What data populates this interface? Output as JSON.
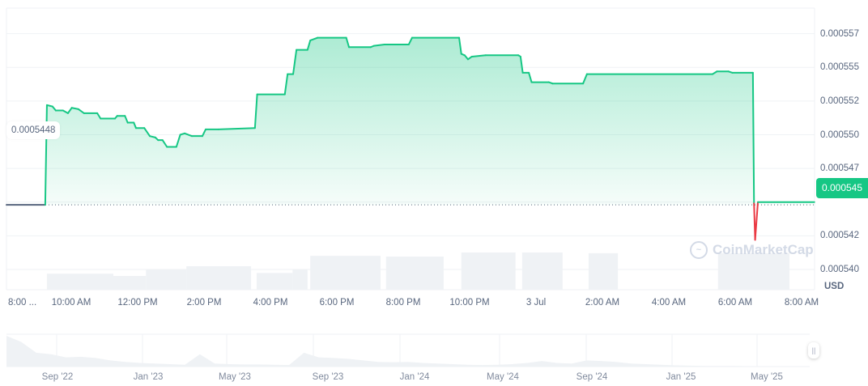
{
  "chart_data": {
    "type": "area",
    "currency_label": "USD",
    "open_price_label": "0.0005448",
    "current_price_label": "0.000545",
    "baseline_price": 0.0005448,
    "ylim": [
      0.0005385,
      0.0005594
    ],
    "y_ticks": [
      {
        "value": 0.0005575,
        "label": "0.000557"
      },
      {
        "value": 0.000555,
        "label": "0.000555"
      },
      {
        "value": 0.0005525,
        "label": "0.000552"
      },
      {
        "value": 0.00055,
        "label": "0.000550"
      },
      {
        "value": 0.0005475,
        "label": "0.000547"
      },
      {
        "value": 0.000545,
        "label": "0.000545"
      },
      {
        "value": 0.0005425,
        "label": "0.000542"
      },
      {
        "value": 0.00054,
        "label": "0.000540"
      }
    ],
    "x_ticks": [
      {
        "time": "2 Jul 08:00",
        "label": "8:00 ..."
      },
      {
        "time": "2 Jul 10:00",
        "label": "10:00 AM"
      },
      {
        "time": "2 Jul 12:00",
        "label": "12:00 PM"
      },
      {
        "time": "2 Jul 14:00",
        "label": "2:00 PM"
      },
      {
        "time": "2 Jul 16:00",
        "label": "4:00 PM"
      },
      {
        "time": "2 Jul 18:00",
        "label": "6:00 PM"
      },
      {
        "time": "2 Jul 20:00",
        "label": "8:00 PM"
      },
      {
        "time": "2 Jul 22:00",
        "label": "10:00 PM"
      },
      {
        "time": "3 Jul 00:00",
        "label": "3 Jul"
      },
      {
        "time": "3 Jul 02:00",
        "label": "2:00 AM"
      },
      {
        "time": "3 Jul 04:00",
        "label": "4:00 AM"
      },
      {
        "time": "3 Jul 06:00",
        "label": "6:00 AM"
      },
      {
        "time": "3 Jul 08:00",
        "label": "8:00 AM"
      }
    ],
    "colors": {
      "up": "#16c784",
      "down": "#ea3943",
      "volume": "#eff2f5",
      "grid": "#eff2f5"
    },
    "series": [
      {
        "points": [
          [
            "2 Jul 08:03",
            0.0005448
          ],
          [
            "2 Jul 09:13",
            0.0005448
          ],
          [
            "2 Jul 09:16",
            0.0005522
          ],
          [
            "2 Jul 09:26",
            0.0005521
          ],
          [
            "2 Jul 09:32",
            0.0005518
          ],
          [
            "2 Jul 09:45",
            0.0005518
          ],
          [
            "2 Jul 09:54",
            0.0005516
          ],
          [
            "2 Jul 10:01",
            0.000552
          ],
          [
            "2 Jul 10:13",
            0.0005519
          ],
          [
            "2 Jul 10:23",
            0.0005516
          ],
          [
            "2 Jul 10:47",
            0.0005516
          ],
          [
            "2 Jul 10:53",
            0.0005512
          ],
          [
            "2 Jul 11:19",
            0.0005512
          ],
          [
            "2 Jul 11:23",
            0.0005514
          ],
          [
            "2 Jul 11:37",
            0.0005514
          ],
          [
            "2 Jul 11:42",
            0.0005509
          ],
          [
            "2 Jul 11:53",
            0.0005509
          ],
          [
            "2 Jul 11:57",
            0.0005505
          ],
          [
            "2 Jul 12:12",
            0.0005505
          ],
          [
            "2 Jul 12:22",
            0.0005499
          ],
          [
            "2 Jul 12:32",
            0.0005498
          ],
          [
            "2 Jul 12:37",
            0.0005496
          ],
          [
            "2 Jul 12:45",
            0.0005496
          ],
          [
            "2 Jul 12:53",
            0.0005491
          ],
          [
            "2 Jul 13:10",
            0.0005491
          ],
          [
            "2 Jul 13:17",
            0.00055
          ],
          [
            "2 Jul 13:25",
            0.0005501
          ],
          [
            "2 Jul 13:38",
            0.0005499
          ],
          [
            "2 Jul 13:57",
            0.0005499
          ],
          [
            "2 Jul 14:03",
            0.0005504
          ],
          [
            "2 Jul 14:26",
            0.0005504
          ],
          [
            "2 Jul 15:32",
            0.0005505
          ],
          [
            "2 Jul 15:36",
            0.000553
          ],
          [
            "2 Jul 16:26",
            0.000553
          ],
          [
            "2 Jul 16:31",
            0.0005545
          ],
          [
            "2 Jul 16:41",
            0.0005545
          ],
          [
            "2 Jul 16:47",
            0.0005563
          ],
          [
            "2 Jul 17:07",
            0.0005563
          ],
          [
            "2 Jul 17:12",
            0.000557
          ],
          [
            "2 Jul 17:25",
            0.0005572
          ],
          [
            "2 Jul 18:17",
            0.0005572
          ],
          [
            "2 Jul 18:22",
            0.0005565
          ],
          [
            "2 Jul 19:01",
            0.0005565
          ],
          [
            "2 Jul 19:07",
            0.0005566
          ],
          [
            "2 Jul 19:26",
            0.0005567
          ],
          [
            "2 Jul 20:10",
            0.0005567
          ],
          [
            "2 Jul 20:16",
            0.0005572
          ],
          [
            "2 Jul 21:41",
            0.0005572
          ],
          [
            "2 Jul 21:45",
            0.000556
          ],
          [
            "2 Jul 21:51",
            0.0005559
          ],
          [
            "2 Jul 21:57",
            0.0005556
          ],
          [
            "2 Jul 22:04",
            0.0005558
          ],
          [
            "2 Jul 22:29",
            0.0005559
          ],
          [
            "2 Jul 23:28",
            0.0005559
          ],
          [
            "2 Jul 23:32",
            0.0005558
          ],
          [
            "2 Jul 23:36",
            0.0005546
          ],
          [
            "2 Jul 23:47",
            0.0005546
          ],
          [
            "2 Jul 23:52",
            0.0005539
          ],
          [
            "3 Jul 00:23",
            0.0005539
          ],
          [
            "3 Jul 00:30",
            0.0005538
          ],
          [
            "3 Jul 01:25",
            0.0005538
          ],
          [
            "3 Jul 01:32",
            0.0005545
          ],
          [
            "3 Jul 05:19",
            0.0005545
          ],
          [
            "3 Jul 05:27",
            0.0005547
          ],
          [
            "3 Jul 05:48",
            0.0005547
          ],
          [
            "3 Jul 05:55",
            0.0005546
          ],
          [
            "3 Jul 06:32",
            0.0005546
          ],
          [
            "3 Jul 06:34",
            0.0005449
          ],
          [
            "3 Jul 06:36",
            0.0005422
          ],
          [
            "3 Jul 06:41",
            0.000545
          ],
          [
            "3 Jul 08:23",
            0.000545
          ]
        ]
      }
    ],
    "volume_relative": [
      [
        "2 Jul 09:16",
        "2 Jul 11:16",
        0.43
      ],
      [
        "2 Jul 11:16",
        "2 Jul 12:15",
        0.37
      ],
      [
        "2 Jul 12:15",
        "2 Jul 13:28",
        0.54
      ],
      [
        "2 Jul 13:28",
        "2 Jul 15:25",
        0.63
      ],
      [
        "2 Jul 15:35",
        "2 Jul 16:40",
        0.45
      ],
      [
        "2 Jul 16:40",
        "2 Jul 17:07",
        0.55
      ],
      [
        "2 Jul 17:12",
        "2 Jul 19:19",
        0.91
      ],
      [
        "2 Jul 19:29",
        "2 Jul 21:13",
        0.89
      ],
      [
        "2 Jul 21:45",
        "2 Jul 23:23",
        1.0
      ],
      [
        "2 Jul 23:35",
        "3 Jul 00:48",
        1.0
      ],
      [
        "3 Jul 01:35",
        "3 Jul 02:28",
        0.98
      ],
      [
        "3 Jul 05:29",
        "3 Jul 07:38",
        0.98
      ]
    ],
    "navigator": {
      "labels": [
        "Sep '22",
        "Jan '23",
        "May '23",
        "Sep '23",
        "Jan '24",
        "May '24",
        "Sep '24",
        "Jan '25",
        "May '25"
      ],
      "relative_history": [
        1,
        0.8,
        0.45,
        0.4,
        0.3,
        0.32,
        0.28,
        0.2,
        0.15,
        0.12,
        0.1,
        0.08,
        0.06,
        0.4,
        0.1,
        0.08,
        0.07,
        0.07,
        0.06,
        0.05,
        0.45,
        0.3,
        0.28,
        0.25,
        0.2,
        0.15,
        0.14,
        0.15,
        0.12,
        0.1,
        0.08,
        0.06,
        0.05,
        0.06,
        0.08,
        0.12,
        0.18,
        0.12,
        0.1,
        0.2,
        0.18,
        0.15,
        0.1,
        0.08,
        0.06,
        0.04,
        0.03,
        0.02,
        0.02,
        0.02,
        0.01,
        0.01,
        0.01,
        0.01,
        0.01
      ]
    },
    "watermark": "CoinMarketCap"
  }
}
